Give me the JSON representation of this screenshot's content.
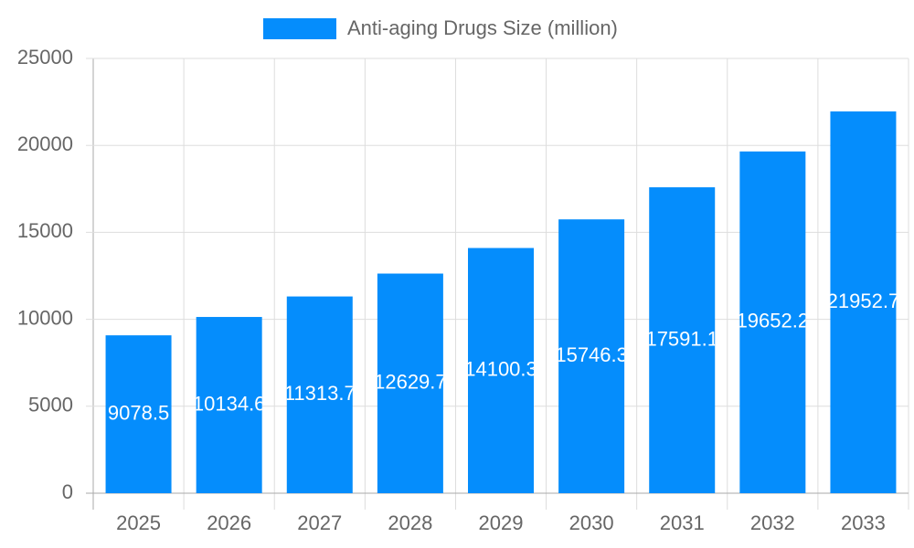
{
  "chart_data": {
    "type": "bar",
    "categories": [
      "2025",
      "2026",
      "2027",
      "2028",
      "2029",
      "2030",
      "2031",
      "2032",
      "2033"
    ],
    "series": [
      {
        "name": "Anti-aging Drugs Size (million)",
        "color": "#058dfc",
        "values": [
          9078.5,
          10134.6,
          11313.7,
          12629.7,
          14100.3,
          15746.3,
          17591.1,
          19652.2,
          21952.7
        ]
      }
    ],
    "ylim": [
      0,
      25000
    ],
    "yticks": [
      0,
      5000,
      10000,
      15000,
      20000,
      25000
    ],
    "grid": true,
    "legend": "top"
  }
}
